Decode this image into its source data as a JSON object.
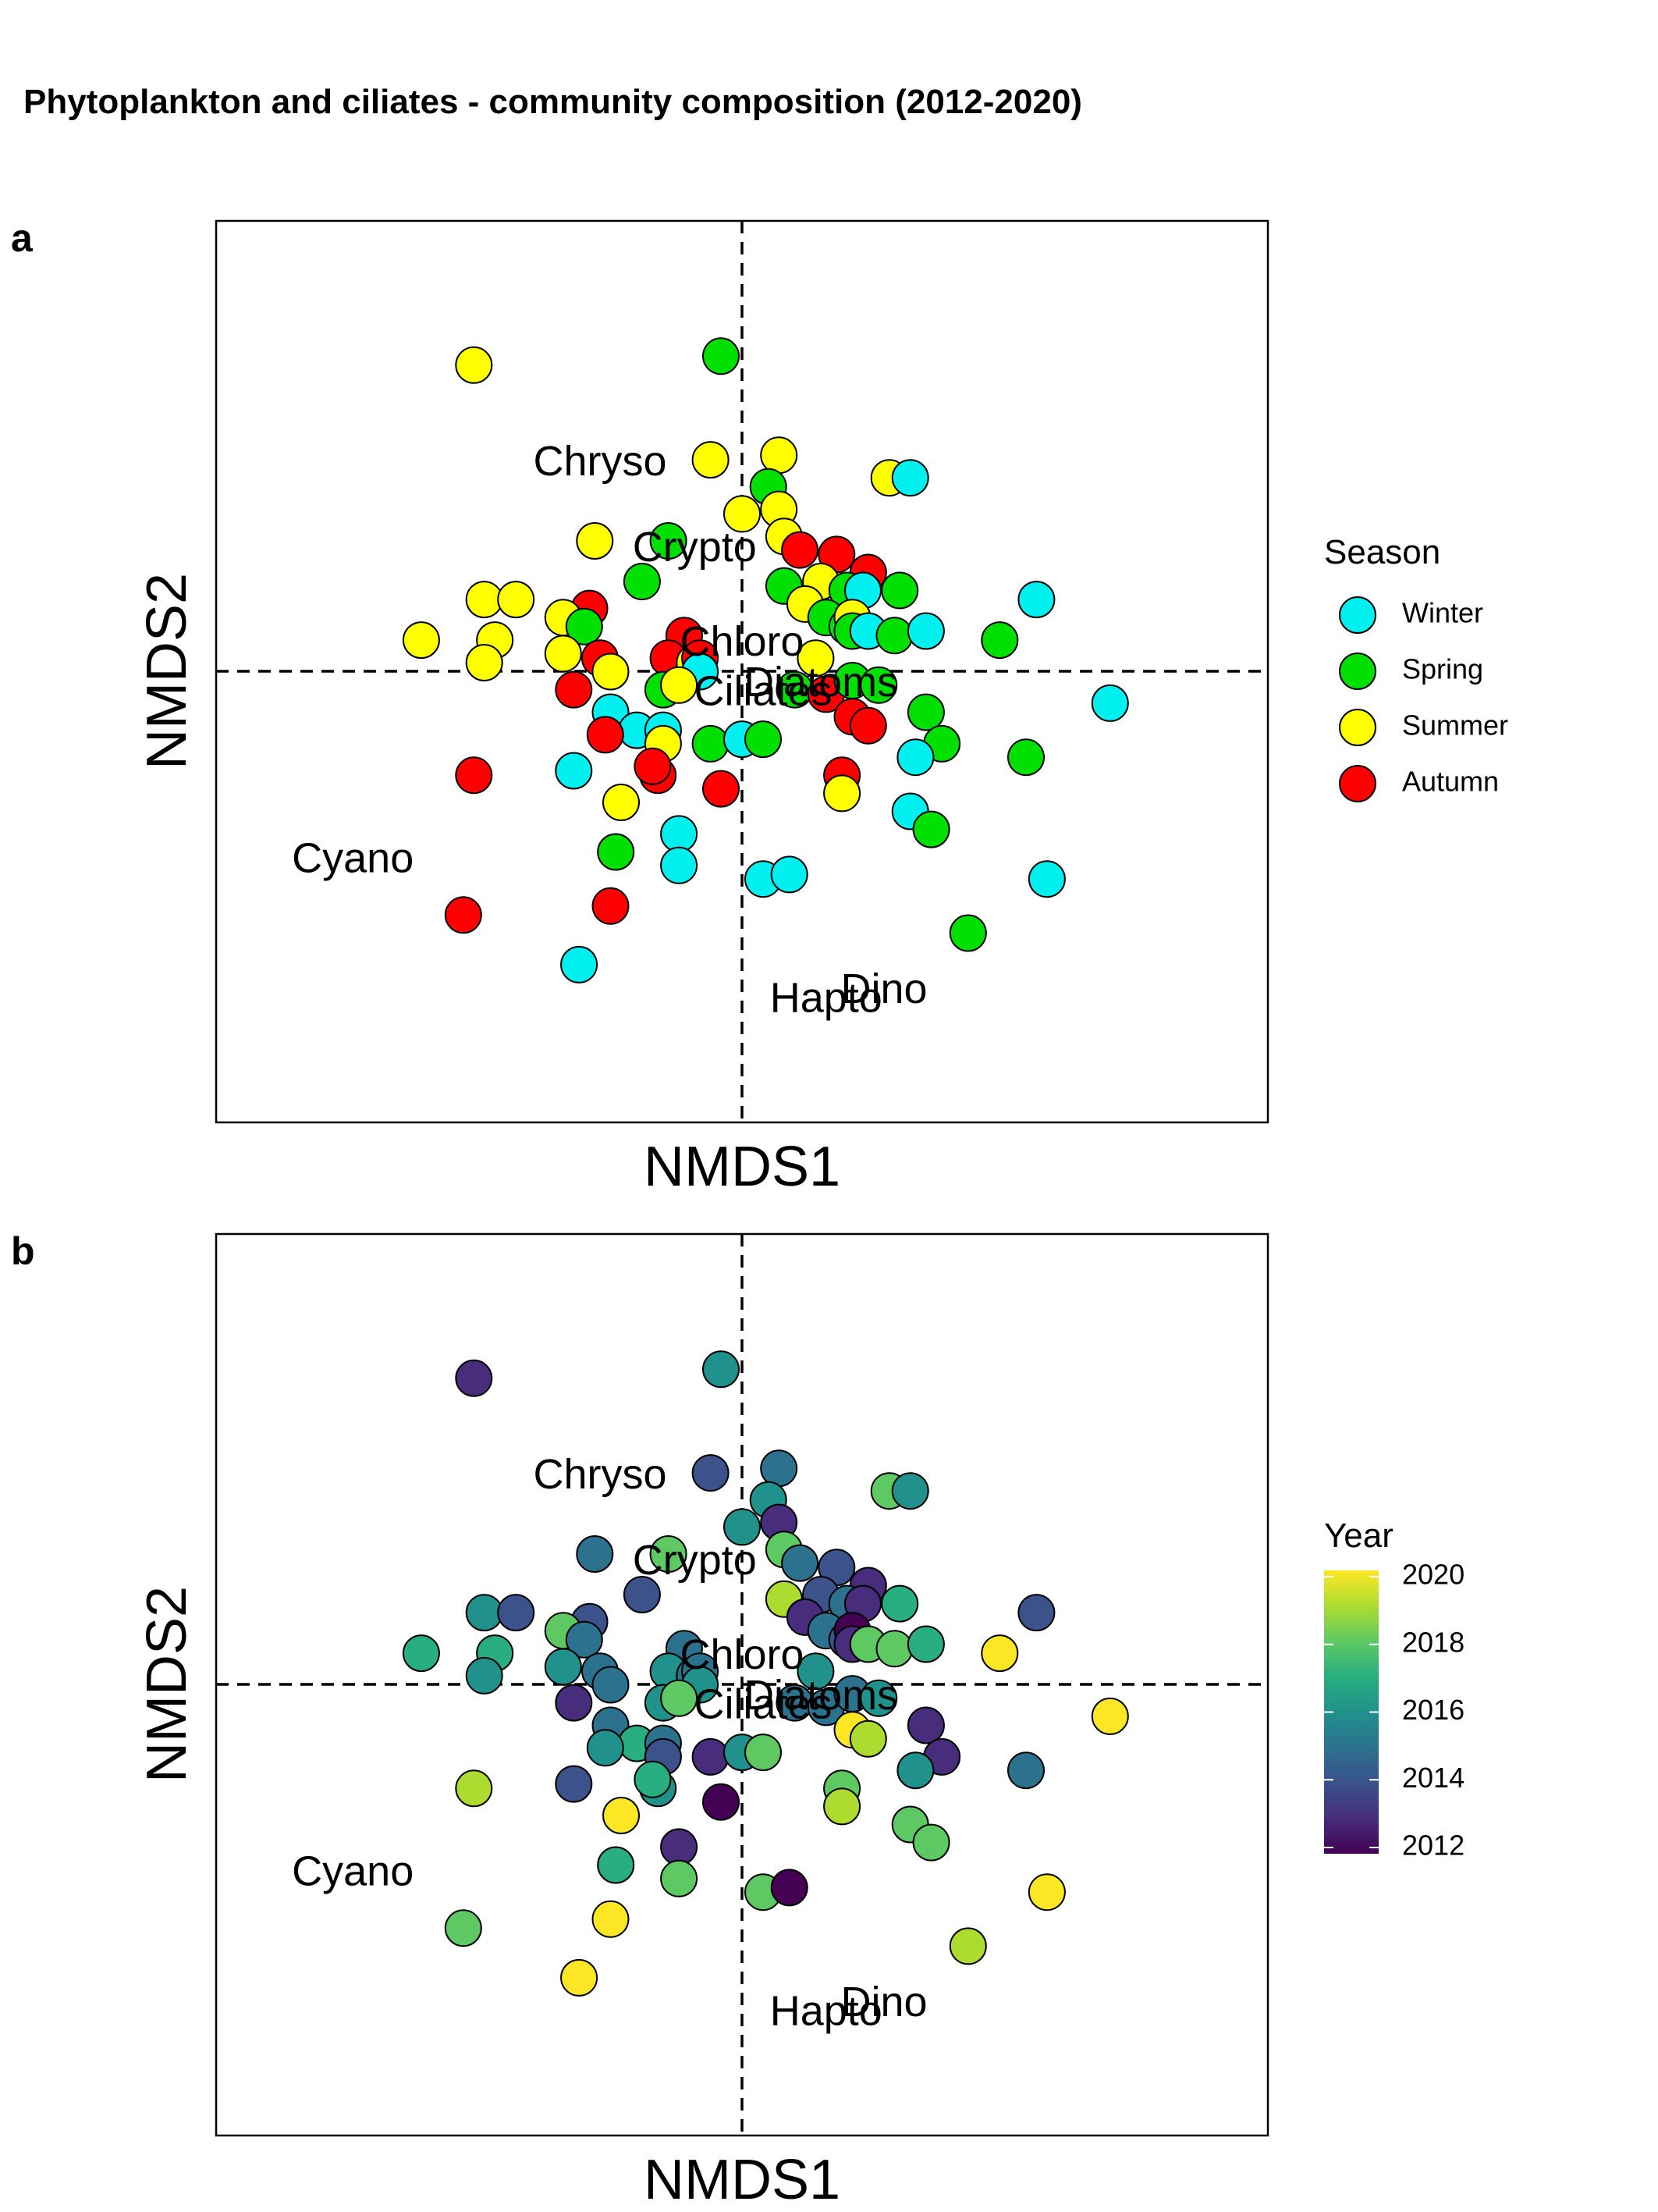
{
  "figure": {
    "title": "Phytoplankton and ciliates - community composition (2012-2020)"
  },
  "panels": [
    {
      "letter": "a",
      "xlabel": "NMDS1",
      "ylabel": "NMDS2",
      "legend_title": "Season"
    },
    {
      "letter": "b",
      "xlabel": "NMDS1",
      "ylabel": "NMDS2",
      "legend_title": "Year"
    }
  ],
  "chart_data": {
    "type": "scatter",
    "axes": {
      "xlim": [
        -1.0,
        1.0
      ],
      "ylim": [
        -1.0,
        1.0
      ],
      "reference_lines": {
        "x": 0,
        "y": 0,
        "style": "dashed"
      },
      "grid": false,
      "ticks": false
    },
    "season_colors": {
      "Winter": "#00f0f0",
      "Spring": "#00e000",
      "Summer": "#ffff00",
      "Autumn": "#ff0000"
    },
    "year_scale": {
      "type": "viridis",
      "min": 2012,
      "max": 2020,
      "ticks": [
        "2020",
        "2018",
        "2016",
        "2014",
        "2012"
      ],
      "colors": [
        "#440154",
        "#472d7b",
        "#3b528b",
        "#2c728e",
        "#21918c",
        "#28ae80",
        "#5ec962",
        "#addc30",
        "#fde725"
      ]
    },
    "legend_a": [
      "Winter",
      "Spring",
      "Summer",
      "Autumn"
    ],
    "taxa": [
      {
        "label": "Chryso",
        "x": -0.27,
        "y": 0.46
      },
      {
        "label": "Crypto",
        "x": -0.09,
        "y": 0.27
      },
      {
        "label": "Chloro",
        "x": 0.0,
        "y": 0.06
      },
      {
        "label": "Diatoms",
        "x": 0.15,
        "y": -0.03
      },
      {
        "label": "Ciliates",
        "x": 0.04,
        "y": -0.05
      },
      {
        "label": "Cyano",
        "x": -0.74,
        "y": -0.42
      },
      {
        "label": "Dino",
        "x": 0.27,
        "y": -0.71
      },
      {
        "label": "Hapto",
        "x": 0.16,
        "y": -0.73
      }
    ],
    "points": [
      {
        "x": -0.51,
        "y": 0.68,
        "season": "Summer",
        "year": 2013
      },
      {
        "x": -0.04,
        "y": 0.7,
        "season": "Spring",
        "year": 2016
      },
      {
        "x": -0.06,
        "y": 0.47,
        "season": "Summer",
        "year": 2014
      },
      {
        "x": 0.07,
        "y": 0.48,
        "season": "Summer",
        "year": 2015
      },
      {
        "x": 0.05,
        "y": 0.41,
        "season": "Spring",
        "year": 2016
      },
      {
        "x": 0.28,
        "y": 0.43,
        "season": "Summer",
        "year": 2018
      },
      {
        "x": 0.32,
        "y": 0.43,
        "season": "Winter",
        "year": 2016
      },
      {
        "x": 0.07,
        "y": 0.36,
        "season": "Summer",
        "year": 2013
      },
      {
        "x": 0.0,
        "y": 0.35,
        "season": "Summer",
        "year": 2016
      },
      {
        "x": -0.28,
        "y": 0.29,
        "season": "Summer",
        "year": 2015
      },
      {
        "x": -0.14,
        "y": 0.29,
        "season": "Spring",
        "year": 2018
      },
      {
        "x": 0.08,
        "y": 0.3,
        "season": "Summer",
        "year": 2018
      },
      {
        "x": 0.11,
        "y": 0.27,
        "season": "Autumn",
        "year": 2015
      },
      {
        "x": 0.18,
        "y": 0.26,
        "season": "Autumn",
        "year": 2014
      },
      {
        "x": 0.24,
        "y": 0.22,
        "season": "Autumn",
        "year": 2013
      },
      {
        "x": -0.19,
        "y": 0.2,
        "season": "Spring",
        "year": 2014
      },
      {
        "x": 0.08,
        "y": 0.19,
        "season": "Spring",
        "year": 2019
      },
      {
        "x": 0.15,
        "y": 0.2,
        "season": "Summer",
        "year": 2014
      },
      {
        "x": 0.2,
        "y": 0.18,
        "season": "Spring",
        "year": 2015
      },
      {
        "x": 0.23,
        "y": 0.18,
        "season": "Winter",
        "year": 2013
      },
      {
        "x": 0.3,
        "y": 0.18,
        "season": "Spring",
        "year": 2017
      },
      {
        "x": -0.49,
        "y": 0.16,
        "season": "Summer",
        "year": 2016
      },
      {
        "x": -0.43,
        "y": 0.16,
        "season": "Summer",
        "year": 2014
      },
      {
        "x": -0.29,
        "y": 0.14,
        "season": "Autumn",
        "year": 2014
      },
      {
        "x": -0.34,
        "y": 0.12,
        "season": "Summer",
        "year": 2018
      },
      {
        "x": 0.12,
        "y": 0.15,
        "season": "Summer",
        "year": 2013
      },
      {
        "x": 0.16,
        "y": 0.12,
        "season": "Spring",
        "year": 2015
      },
      {
        "x": 0.2,
        "y": 0.1,
        "season": "Spring",
        "year": 2014
      },
      {
        "x": 0.21,
        "y": 0.12,
        "season": "Summer",
        "year": 2012
      },
      {
        "x": 0.56,
        "y": 0.16,
        "season": "Winter",
        "year": 2014
      },
      {
        "x": -0.61,
        "y": 0.07,
        "season": "Summer",
        "year": 2017
      },
      {
        "x": -0.47,
        "y": 0.07,
        "season": "Summer",
        "year": 2017
      },
      {
        "x": -0.3,
        "y": 0.1,
        "season": "Spring",
        "year": 2015
      },
      {
        "x": -0.11,
        "y": 0.08,
        "season": "Autumn",
        "year": 2015
      },
      {
        "x": 0.21,
        "y": 0.09,
        "season": "Spring",
        "year": 2013
      },
      {
        "x": 0.24,
        "y": 0.09,
        "season": "Winter",
        "year": 2018
      },
      {
        "x": 0.29,
        "y": 0.08,
        "season": "Spring",
        "year": 2018
      },
      {
        "x": 0.35,
        "y": 0.09,
        "season": "Winter",
        "year": 2017
      },
      {
        "x": 0.49,
        "y": 0.07,
        "season": "Spring",
        "year": 2020
      },
      {
        "x": -0.49,
        "y": 0.02,
        "season": "Summer",
        "year": 2016
      },
      {
        "x": -0.34,
        "y": 0.04,
        "season": "Summer",
        "year": 2016
      },
      {
        "x": -0.27,
        "y": 0.03,
        "season": "Autumn",
        "year": 2015
      },
      {
        "x": -0.25,
        "y": 0.0,
        "season": "Summer",
        "year": 2015
      },
      {
        "x": -0.14,
        "y": 0.03,
        "season": "Autumn",
        "year": 2016
      },
      {
        "x": -0.09,
        "y": 0.02,
        "season": "Summer",
        "year": 2015
      },
      {
        "x": -0.08,
        "y": 0.03,
        "season": "Autumn",
        "year": 2015
      },
      {
        "x": -0.08,
        "y": 0.0,
        "season": "Winter",
        "year": 2016
      },
      {
        "x": 0.14,
        "y": 0.03,
        "season": "Summer",
        "year": 2016
      },
      {
        "x": -0.32,
        "y": -0.04,
        "season": "Autumn",
        "year": 2013
      },
      {
        "x": -0.15,
        "y": -0.04,
        "season": "Spring",
        "year": 2016
      },
      {
        "x": -0.12,
        "y": -0.03,
        "season": "Summer",
        "year": 2018
      },
      {
        "x": 0.1,
        "y": -0.04,
        "season": "Spring",
        "year": 2015
      },
      {
        "x": 0.16,
        "y": -0.05,
        "season": "Autumn",
        "year": 2015
      },
      {
        "x": 0.21,
        "y": -0.02,
        "season": "Spring",
        "year": 2015
      },
      {
        "x": 0.26,
        "y": -0.03,
        "season": "Spring",
        "year": 2016
      },
      {
        "x": 0.7,
        "y": -0.07,
        "season": "Winter",
        "year": 2020
      },
      {
        "x": -0.25,
        "y": -0.09,
        "season": "Winter",
        "year": 2015
      },
      {
        "x": 0.21,
        "y": -0.1,
        "season": "Autumn",
        "year": 2020
      },
      {
        "x": 0.24,
        "y": -0.12,
        "season": "Autumn",
        "year": 2019
      },
      {
        "x": 0.35,
        "y": -0.09,
        "season": "Spring",
        "year": 2013
      },
      {
        "x": -0.2,
        "y": -0.13,
        "season": "Winter",
        "year": 2017
      },
      {
        "x": -0.26,
        "y": -0.14,
        "season": "Autumn",
        "year": 2016
      },
      {
        "x": -0.15,
        "y": -0.13,
        "season": "Winter",
        "year": 2015
      },
      {
        "x": -0.15,
        "y": -0.16,
        "season": "Summer",
        "year": 2014
      },
      {
        "x": -0.06,
        "y": -0.16,
        "season": "Spring",
        "year": 2013
      },
      {
        "x": 0.0,
        "y": -0.15,
        "season": "Winter",
        "year": 2016
      },
      {
        "x": 0.04,
        "y": -0.15,
        "season": "Spring",
        "year": 2018
      },
      {
        "x": 0.38,
        "y": -0.16,
        "season": "Spring",
        "year": 2013
      },
      {
        "x": -0.51,
        "y": -0.23,
        "season": "Autumn",
        "year": 2019
      },
      {
        "x": -0.32,
        "y": -0.22,
        "season": "Winter",
        "year": 2014
      },
      {
        "x": -0.16,
        "y": -0.23,
        "season": "Autumn",
        "year": 2016
      },
      {
        "x": -0.17,
        "y": -0.21,
        "season": "Autumn",
        "year": 2017
      },
      {
        "x": 0.33,
        "y": -0.19,
        "season": "Winter",
        "year": 2016
      },
      {
        "x": 0.54,
        "y": -0.19,
        "season": "Spring",
        "year": 2015
      },
      {
        "x": -0.04,
        "y": -0.26,
        "season": "Autumn",
        "year": 2012
      },
      {
        "x": 0.19,
        "y": -0.23,
        "season": "Autumn",
        "year": 2018
      },
      {
        "x": -0.23,
        "y": -0.29,
        "season": "Summer",
        "year": 2020
      },
      {
        "x": 0.19,
        "y": -0.27,
        "season": "Summer",
        "year": 2019
      },
      {
        "x": 0.32,
        "y": -0.31,
        "season": "Winter",
        "year": 2018
      },
      {
        "x": 0.36,
        "y": -0.35,
        "season": "Spring",
        "year": 2018
      },
      {
        "x": -0.12,
        "y": -0.36,
        "season": "Winter",
        "year": 2013
      },
      {
        "x": -0.24,
        "y": -0.4,
        "season": "Spring",
        "year": 2017
      },
      {
        "x": -0.12,
        "y": -0.43,
        "season": "Winter",
        "year": 2018
      },
      {
        "x": 0.04,
        "y": -0.46,
        "season": "Winter",
        "year": 2018
      },
      {
        "x": 0.09,
        "y": -0.45,
        "season": "Winter",
        "year": 2012
      },
      {
        "x": 0.58,
        "y": -0.46,
        "season": "Winter",
        "year": 2020
      },
      {
        "x": -0.53,
        "y": -0.54,
        "season": "Autumn",
        "year": 2018
      },
      {
        "x": -0.25,
        "y": -0.52,
        "season": "Autumn",
        "year": 2020
      },
      {
        "x": 0.43,
        "y": -0.58,
        "season": "Spring",
        "year": 2019
      },
      {
        "x": -0.31,
        "y": -0.65,
        "season": "Winter",
        "year": 2020
      }
    ]
  }
}
